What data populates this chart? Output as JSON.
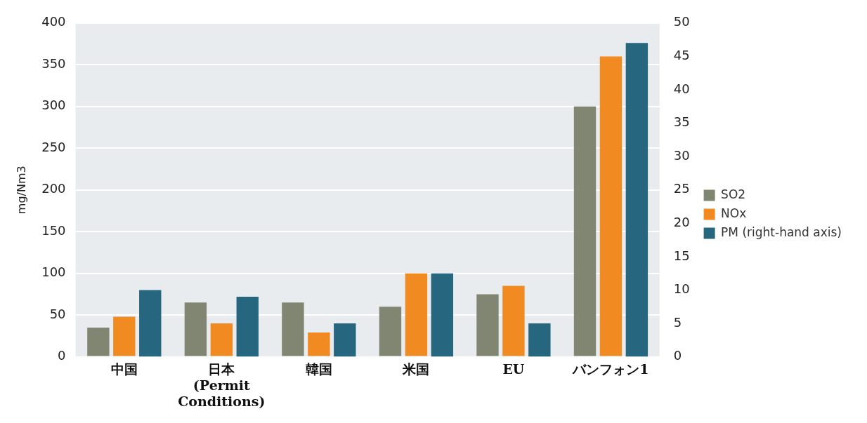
{
  "chart_data": {
    "type": "bar",
    "ylabel": "mg/Nm3",
    "categories": [
      "中国",
      "日本 (Permit Conditions)",
      "韓国",
      "米国",
      "EU",
      "バンフォン1"
    ],
    "series": [
      {
        "name": "SO2",
        "color": "#808671",
        "values": [
          35,
          65,
          65,
          60,
          75,
          300
        ]
      },
      {
        "name": "NOx",
        "color": "#f18a21",
        "values": [
          48,
          40,
          29,
          100,
          85,
          360
        ]
      },
      {
        "name": "PM (right-hand axis)",
        "color": "#27667f",
        "axis": "y2",
        "values": [
          10,
          9,
          5,
          12.5,
          5,
          47
        ]
      }
    ],
    "ylim": [
      0,
      400
    ],
    "yticks": [
      0,
      50,
      100,
      150,
      200,
      250,
      300,
      350,
      400
    ],
    "y2lim": [
      0,
      50
    ],
    "y2ticks": [
      0,
      5,
      10,
      15,
      20,
      25,
      30,
      35,
      40,
      45,
      50
    ],
    "grid": "y",
    "legend": "right"
  }
}
